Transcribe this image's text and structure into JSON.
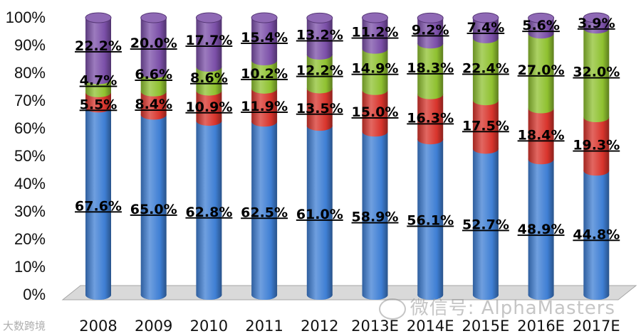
{
  "chart_data": {
    "type": "bar",
    "stacked": true,
    "percent_scale": true,
    "categories": [
      "2008",
      "2009",
      "2010",
      "2011",
      "2012",
      "2013E",
      "2014E",
      "2015E",
      "2016E",
      "2017E"
    ],
    "series": [
      {
        "color": "#3f7fd4",
        "values": [
          67.6,
          65.0,
          62.8,
          62.5,
          61.0,
          58.9,
          56.1,
          52.7,
          48.9,
          44.8
        ],
        "labels": [
          "67.6%",
          "65.0%",
          "62.8%",
          "62.5%",
          "61.0%",
          "58.9%",
          "56.1%",
          "52.7%",
          "48.9%",
          "44.8%"
        ]
      },
      {
        "color": "#d8342c",
        "values": [
          5.5,
          8.4,
          10.9,
          11.9,
          13.5,
          15.0,
          16.3,
          17.5,
          18.4,
          19.3
        ],
        "labels": [
          "5.5%",
          "8.4%",
          "10.9%",
          "11.9%",
          "13.5%",
          "15.0%",
          "16.3%",
          "17.5%",
          "18.4%",
          "19.3%"
        ]
      },
      {
        "color": "#8fc130",
        "values": [
          4.7,
          6.6,
          8.6,
          10.2,
          12.2,
          14.9,
          18.3,
          22.4,
          27.0,
          32.0
        ],
        "labels": [
          "4.7%",
          "6.6%",
          "8.6%",
          "10.2%",
          "12.2%",
          "14.9%",
          "18.3%",
          "22.4%",
          "27.0%",
          "32.0%"
        ]
      },
      {
        "color": "#7b4fa8",
        "values": [
          22.2,
          20.0,
          17.7,
          15.4,
          13.2,
          11.2,
          9.2,
          7.4,
          5.6,
          3.9
        ],
        "labels": [
          "22.2%",
          "20.0%",
          "17.7%",
          "15.4%",
          "13.2%",
          "11.2%",
          "9.2%",
          "7.4%",
          "5.6%",
          "3.9%"
        ]
      }
    ],
    "y_ticks": [
      "0%",
      "10%",
      "20%",
      "30%",
      "40%",
      "50%",
      "60%",
      "70%",
      "80%",
      "90%",
      "100%"
    ],
    "ylim": [
      0,
      100
    ],
    "grid": false,
    "legend": "none",
    "title": "",
    "xlabel": "",
    "ylabel": ""
  },
  "watermark": {
    "text": "微信号: AlphaMasters",
    "source": "大数跨境"
  }
}
